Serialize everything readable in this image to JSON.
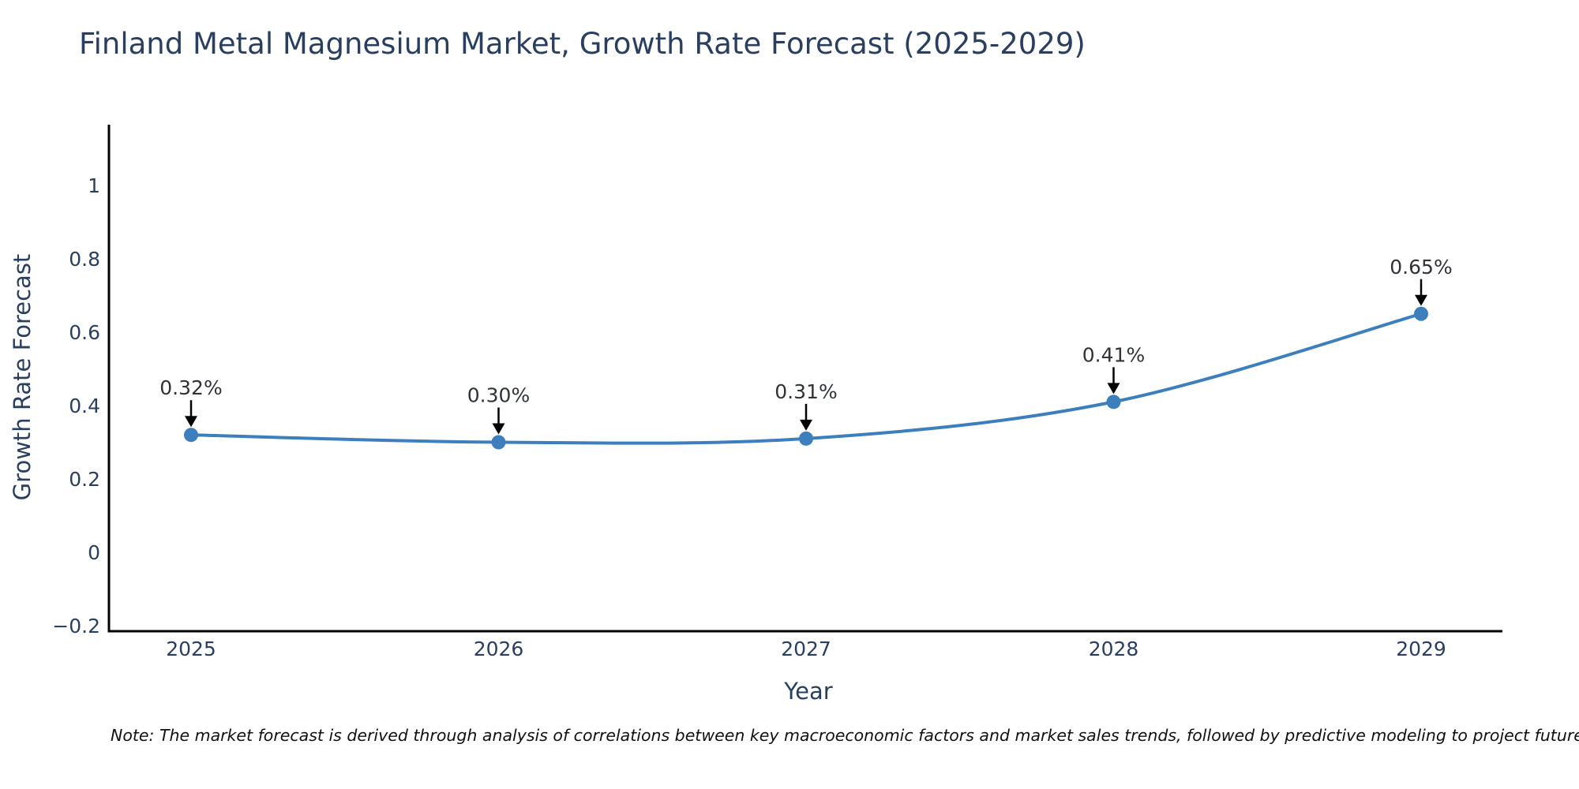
{
  "chart_data": {
    "type": "line",
    "title": "Finland Metal Magnesium Market, Growth Rate Forecast (2025-2029)",
    "xlabel": "Year",
    "ylabel": "Growth Rate Forecast",
    "x": [
      2025,
      2026,
      2027,
      2028,
      2029
    ],
    "series": [
      {
        "name": "Growth Rate Forecast",
        "values": [
          0.32,
          0.3,
          0.31,
          0.41,
          0.65
        ],
        "point_labels": [
          "0.32%",
          "0.30%",
          "0.31%",
          "0.41%",
          "0.65%"
        ]
      }
    ],
    "line_shape": "spline",
    "markers": true,
    "grid": false,
    "legend_position": "none",
    "ylim": [
      -0.215,
      1.18
    ],
    "yticks": {
      "values": [
        1,
        0.8,
        0.6,
        0.4,
        0.2,
        0,
        -0.2
      ],
      "labels": [
        "1",
        "0.8",
        "0.6",
        "0.4",
        "0.2",
        "0",
        "−0.2"
      ]
    },
    "xtick_labels": [
      "2025",
      "2026",
      "2027",
      "2028",
      "2029"
    ],
    "colors": {
      "line": "#3d7ebd",
      "marker": "#3d7ebd",
      "axis_line": "#000000",
      "axis_text": "#2a3f5f",
      "annotation_text": "#2f3338",
      "annotation_arrow": "#000000",
      "note_text": "#111111",
      "background": "#ffffff"
    },
    "note": "Note: The market forecast is derived through analysis of correlations between key macroeconomic factors and market sales trends, followed by predictive modeling to project future sa"
  }
}
